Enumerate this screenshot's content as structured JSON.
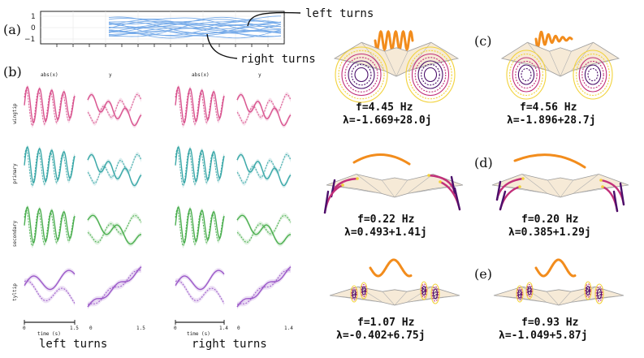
{
  "panel_a": {
    "letter": "(a)",
    "yticks": [
      "1",
      "0",
      "−1"
    ],
    "annotations": {
      "left": "left turns",
      "right": "right turns"
    },
    "color": "#4a90e2"
  },
  "panel_b": {
    "letter": "(b)",
    "columns": [
      "abs(x)",
      "y",
      "abs(x)",
      "y"
    ],
    "rows": [
      {
        "label": "wingtip",
        "color": "#d9548f"
      },
      {
        "label": "primary",
        "color": "#3aa8a8"
      },
      {
        "label": "secondary",
        "color": "#4caf50"
      },
      {
        "label": "tyltip",
        "color": "#9b59c9"
      }
    ],
    "left": {
      "tick_start": "0",
      "tick_end": "1.5",
      "xlabel": "time (s)",
      "title": "left turns"
    },
    "right": {
      "tick_start": "0",
      "tick_end": "1.4",
      "xlabel": "time (s)",
      "title": "right turns"
    }
  },
  "modes": [
    {
      "letter": "(c)",
      "left_freq": "f=4.45 Hz",
      "left_lambda": "λ=-1.669+28.0j",
      "right_freq": "f=4.56 Hz",
      "right_lambda": "λ=-1.896+28.7j"
    },
    {
      "letter": "(d)",
      "left_freq": "f=0.22 Hz",
      "left_lambda": "λ=0.493+1.41j",
      "right_freq": "f=0.20 Hz",
      "right_lambda": "λ=0.385+1.29j"
    },
    {
      "letter": "(e)",
      "left_freq": "f=1.07 Hz",
      "left_lambda": "λ=-0.402+6.75j",
      "right_freq": "f=0.93 Hz",
      "right_lambda": "λ=-1.049+5.87j"
    }
  ],
  "colors": {
    "wave": "#f28c1c",
    "loop_dark": "#4b0f6b",
    "loop_mid": "#c2307a",
    "loop_light": "#f2d23b",
    "body": "#f6ead7"
  }
}
